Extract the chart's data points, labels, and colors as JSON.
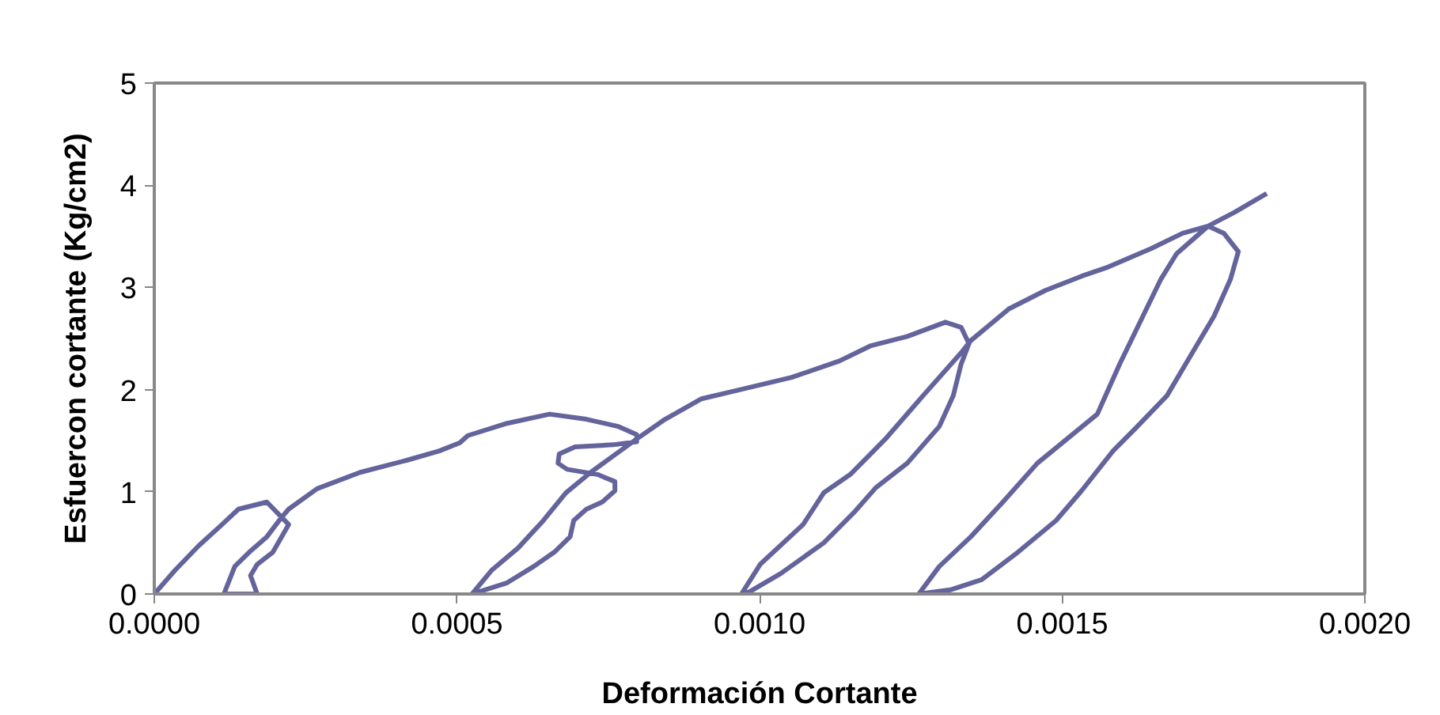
{
  "chart_data": {
    "type": "line",
    "xlabel": "Deformación Cortante",
    "ylabel": "Esfuercon cortante (Kg/cm2)",
    "xlim": [
      0,
      0.002
    ],
    "ylim": [
      0,
      5
    ],
    "xticks": [
      {
        "value": 0,
        "label": "0.0000"
      },
      {
        "value": 0.0005,
        "label": "0.0005"
      },
      {
        "value": 0.001,
        "label": "0.0010"
      },
      {
        "value": 0.0015,
        "label": "0.0015"
      },
      {
        "value": 0.002,
        "label": "0.0020"
      }
    ],
    "yticks": [
      0,
      1,
      2,
      3,
      4,
      5
    ],
    "grid": false,
    "marker": "none",
    "line_style": "solid",
    "series": [
      {
        "color": "#64649c",
        "x": [
          0,
          3.4e-05,
          7.3e-05,
          0.000112,
          0.000139,
          0.000186,
          0.000222,
          0.000196,
          0.00017,
          0.000159,
          0.00017,
          0.000115,
          0.000133,
          0.000157,
          0.000186,
          0.000209,
          0.000222,
          0.000269,
          0.00034,
          0.000418,
          0.000471,
          0.000505,
          0.000518,
          0.000583,
          0.000653,
          0.000714,
          0.000766,
          0.000797,
          0.000797,
          0.000758,
          0.000695,
          0.000669,
          0.000667,
          0.000682,
          0.000732,
          0.000761,
          0.000761,
          0.00074,
          0.000714,
          0.000693,
          0.000687,
          0.000661,
          0.000627,
          0.000583,
          0.000525,
          0.000557,
          0.000601,
          0.000643,
          0.00068,
          0.000721,
          0.000758,
          0.0008,
          0.000844,
          0.000904,
          0.000975,
          0.001053,
          0.001132,
          0.001184,
          0.001244,
          0.001307,
          0.001333,
          0.001346,
          0.001333,
          0.00132,
          0.001297,
          0.001244,
          0.001192,
          0.001158,
          0.001106,
          0.001035,
          0.000983,
          0.00097,
          0.001001,
          0.001072,
          0.001106,
          0.00115,
          0.00121,
          0.00127,
          0.001333,
          0.001349,
          0.001412,
          0.001472,
          0.001532,
          0.001576,
          0.001647,
          0.001699,
          0.001741,
          0.001767,
          0.001791,
          0.001778,
          0.001751,
          0.001715,
          0.001673,
          0.001621,
          0.001584,
          0.001532,
          0.00149,
          0.001427,
          0.001367,
          0.001315,
          0.001263,
          0.001297,
          0.001349,
          0.001402,
          0.001459,
          0.001558,
          0.001595,
          0.001663,
          0.001689,
          0.001741,
          0.001786,
          0.001838
        ],
        "values": [
          0,
          0.23,
          0.47,
          0.68,
          0.83,
          0.9,
          0.68,
          0.41,
          0.29,
          0.18,
          0,
          0,
          0.27,
          0.41,
          0.56,
          0.74,
          0.83,
          1.03,
          1.19,
          1.31,
          1.4,
          1.48,
          1.55,
          1.67,
          1.76,
          1.71,
          1.64,
          1.56,
          1.49,
          1.46,
          1.44,
          1.37,
          1.28,
          1.22,
          1.17,
          1.1,
          1.01,
          0.9,
          0.83,
          0.72,
          0.56,
          0.41,
          0.27,
          0.11,
          0,
          0.23,
          0.45,
          0.72,
          0.99,
          1.19,
          1.35,
          1.53,
          1.71,
          1.91,
          2.01,
          2.12,
          2.28,
          2.43,
          2.52,
          2.66,
          2.61,
          2.45,
          2.25,
          1.94,
          1.64,
          1.28,
          1.04,
          0.81,
          0.5,
          0.2,
          0.02,
          0,
          0.29,
          0.68,
          0.99,
          1.17,
          1.53,
          1.94,
          2.36,
          2.48,
          2.79,
          2.97,
          3.11,
          3.2,
          3.38,
          3.53,
          3.6,
          3.53,
          3.35,
          3.08,
          2.72,
          2.36,
          1.94,
          1.62,
          1.4,
          1.01,
          0.72,
          0.41,
          0.14,
          0.04,
          0,
          0.27,
          0.56,
          0.9,
          1.28,
          1.76,
          2.25,
          3.08,
          3.33,
          3.6,
          3.74,
          3.92
        ]
      }
    ]
  }
}
